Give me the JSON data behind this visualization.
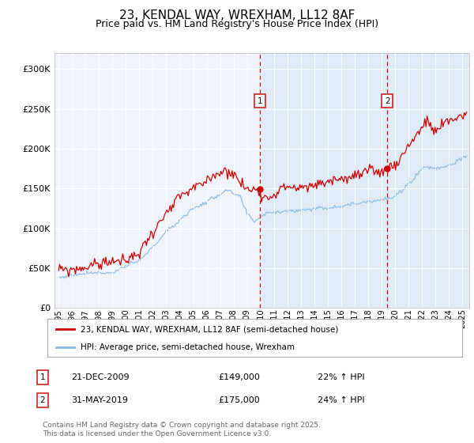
{
  "title": "23, KENDAL WAY, WREXHAM, LL12 8AF",
  "subtitle": "Price paid vs. HM Land Registry's House Price Index (HPI)",
  "bg_color": "#ffffff",
  "plot_bg_color": "#f0f4fa",
  "ylabel_ticks": [
    "£0",
    "£50K",
    "£100K",
    "£150K",
    "£200K",
    "£250K",
    "£300K"
  ],
  "ytick_values": [
    0,
    50000,
    100000,
    150000,
    200000,
    250000,
    300000
  ],
  "ylim": [
    0,
    320000
  ],
  "xlim_start": 1994.7,
  "xlim_end": 2025.5,
  "xtick_years": [
    1995,
    1996,
    1997,
    1998,
    1999,
    2000,
    2001,
    2002,
    2003,
    2004,
    2005,
    2006,
    2007,
    2008,
    2009,
    2010,
    2011,
    2012,
    2013,
    2014,
    2015,
    2016,
    2017,
    2018,
    2019,
    2020,
    2021,
    2022,
    2023,
    2024,
    2025
  ],
  "marker1_x": 2009.97,
  "marker1_y": 149000,
  "marker1_label": "1",
  "marker1_date": "21-DEC-2009",
  "marker1_price": "£149,000",
  "marker1_hpi": "22% ↑ HPI",
  "marker2_x": 2019.42,
  "marker2_y": 175000,
  "marker2_label": "2",
  "marker2_date": "31-MAY-2019",
  "marker2_price": "£175,000",
  "marker2_hpi": "24% ↑ HPI",
  "line1_color": "#cc0000",
  "line2_color": "#88b8e0",
  "line1_label": "23, KENDAL WAY, WREXHAM, LL12 8AF (semi-detached house)",
  "line2_label": "HPI: Average price, semi-detached house, Wrexham",
  "footnote": "Contains HM Land Registry data © Crown copyright and database right 2025.\nThis data is licensed under the Open Government Licence v3.0.",
  "vline_color": "#cc0000",
  "marker_box_color": "#cc2222",
  "shaded_region_color": "#d8e8f5"
}
